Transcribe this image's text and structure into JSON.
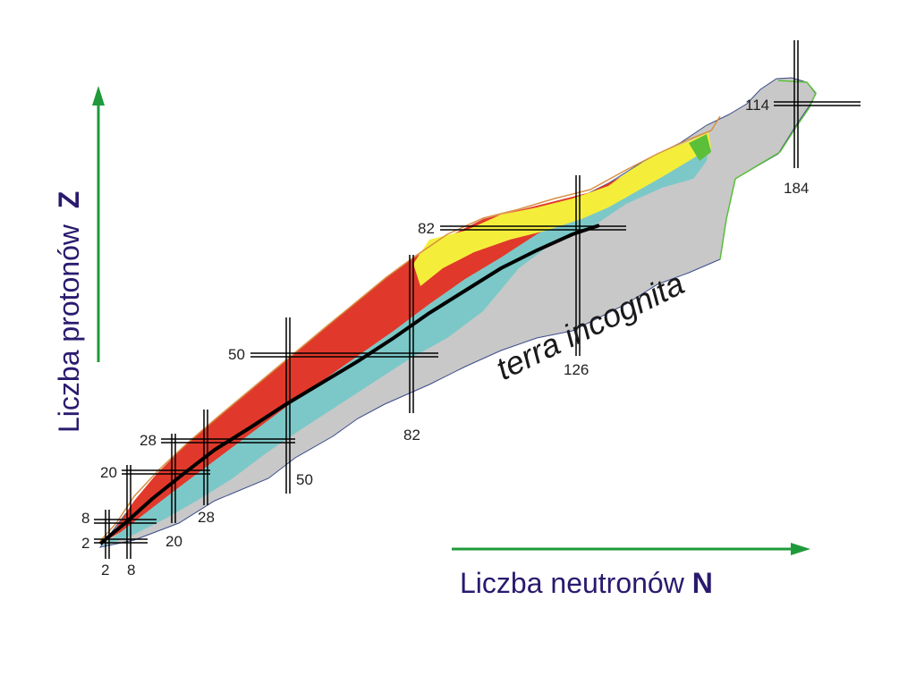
{
  "diagram": {
    "y_axis_label": "Liczba protonów",
    "y_axis_symbol": "Z",
    "x_axis_label": "Liczba neutronów",
    "x_axis_symbol": "N",
    "region_label": "terra incognita",
    "magic_numbers_z": [
      "2",
      "8",
      "20",
      "28",
      "50",
      "82",
      "114"
    ],
    "magic_numbers_n": [
      "2",
      "8",
      "20",
      "28",
      "50",
      "82",
      "126",
      "184"
    ],
    "colors": {
      "axis_arrow": "#1f9a3a",
      "axis_text": "#2a1a6e",
      "unknown_region": "#c8c8c8",
      "neutron_rich": "#7cc8c8",
      "proton_rich": "#e0392b",
      "alpha_region": "#f4ee3a",
      "stable": "#000000",
      "superheavy": "#5cbf3a"
    }
  }
}
